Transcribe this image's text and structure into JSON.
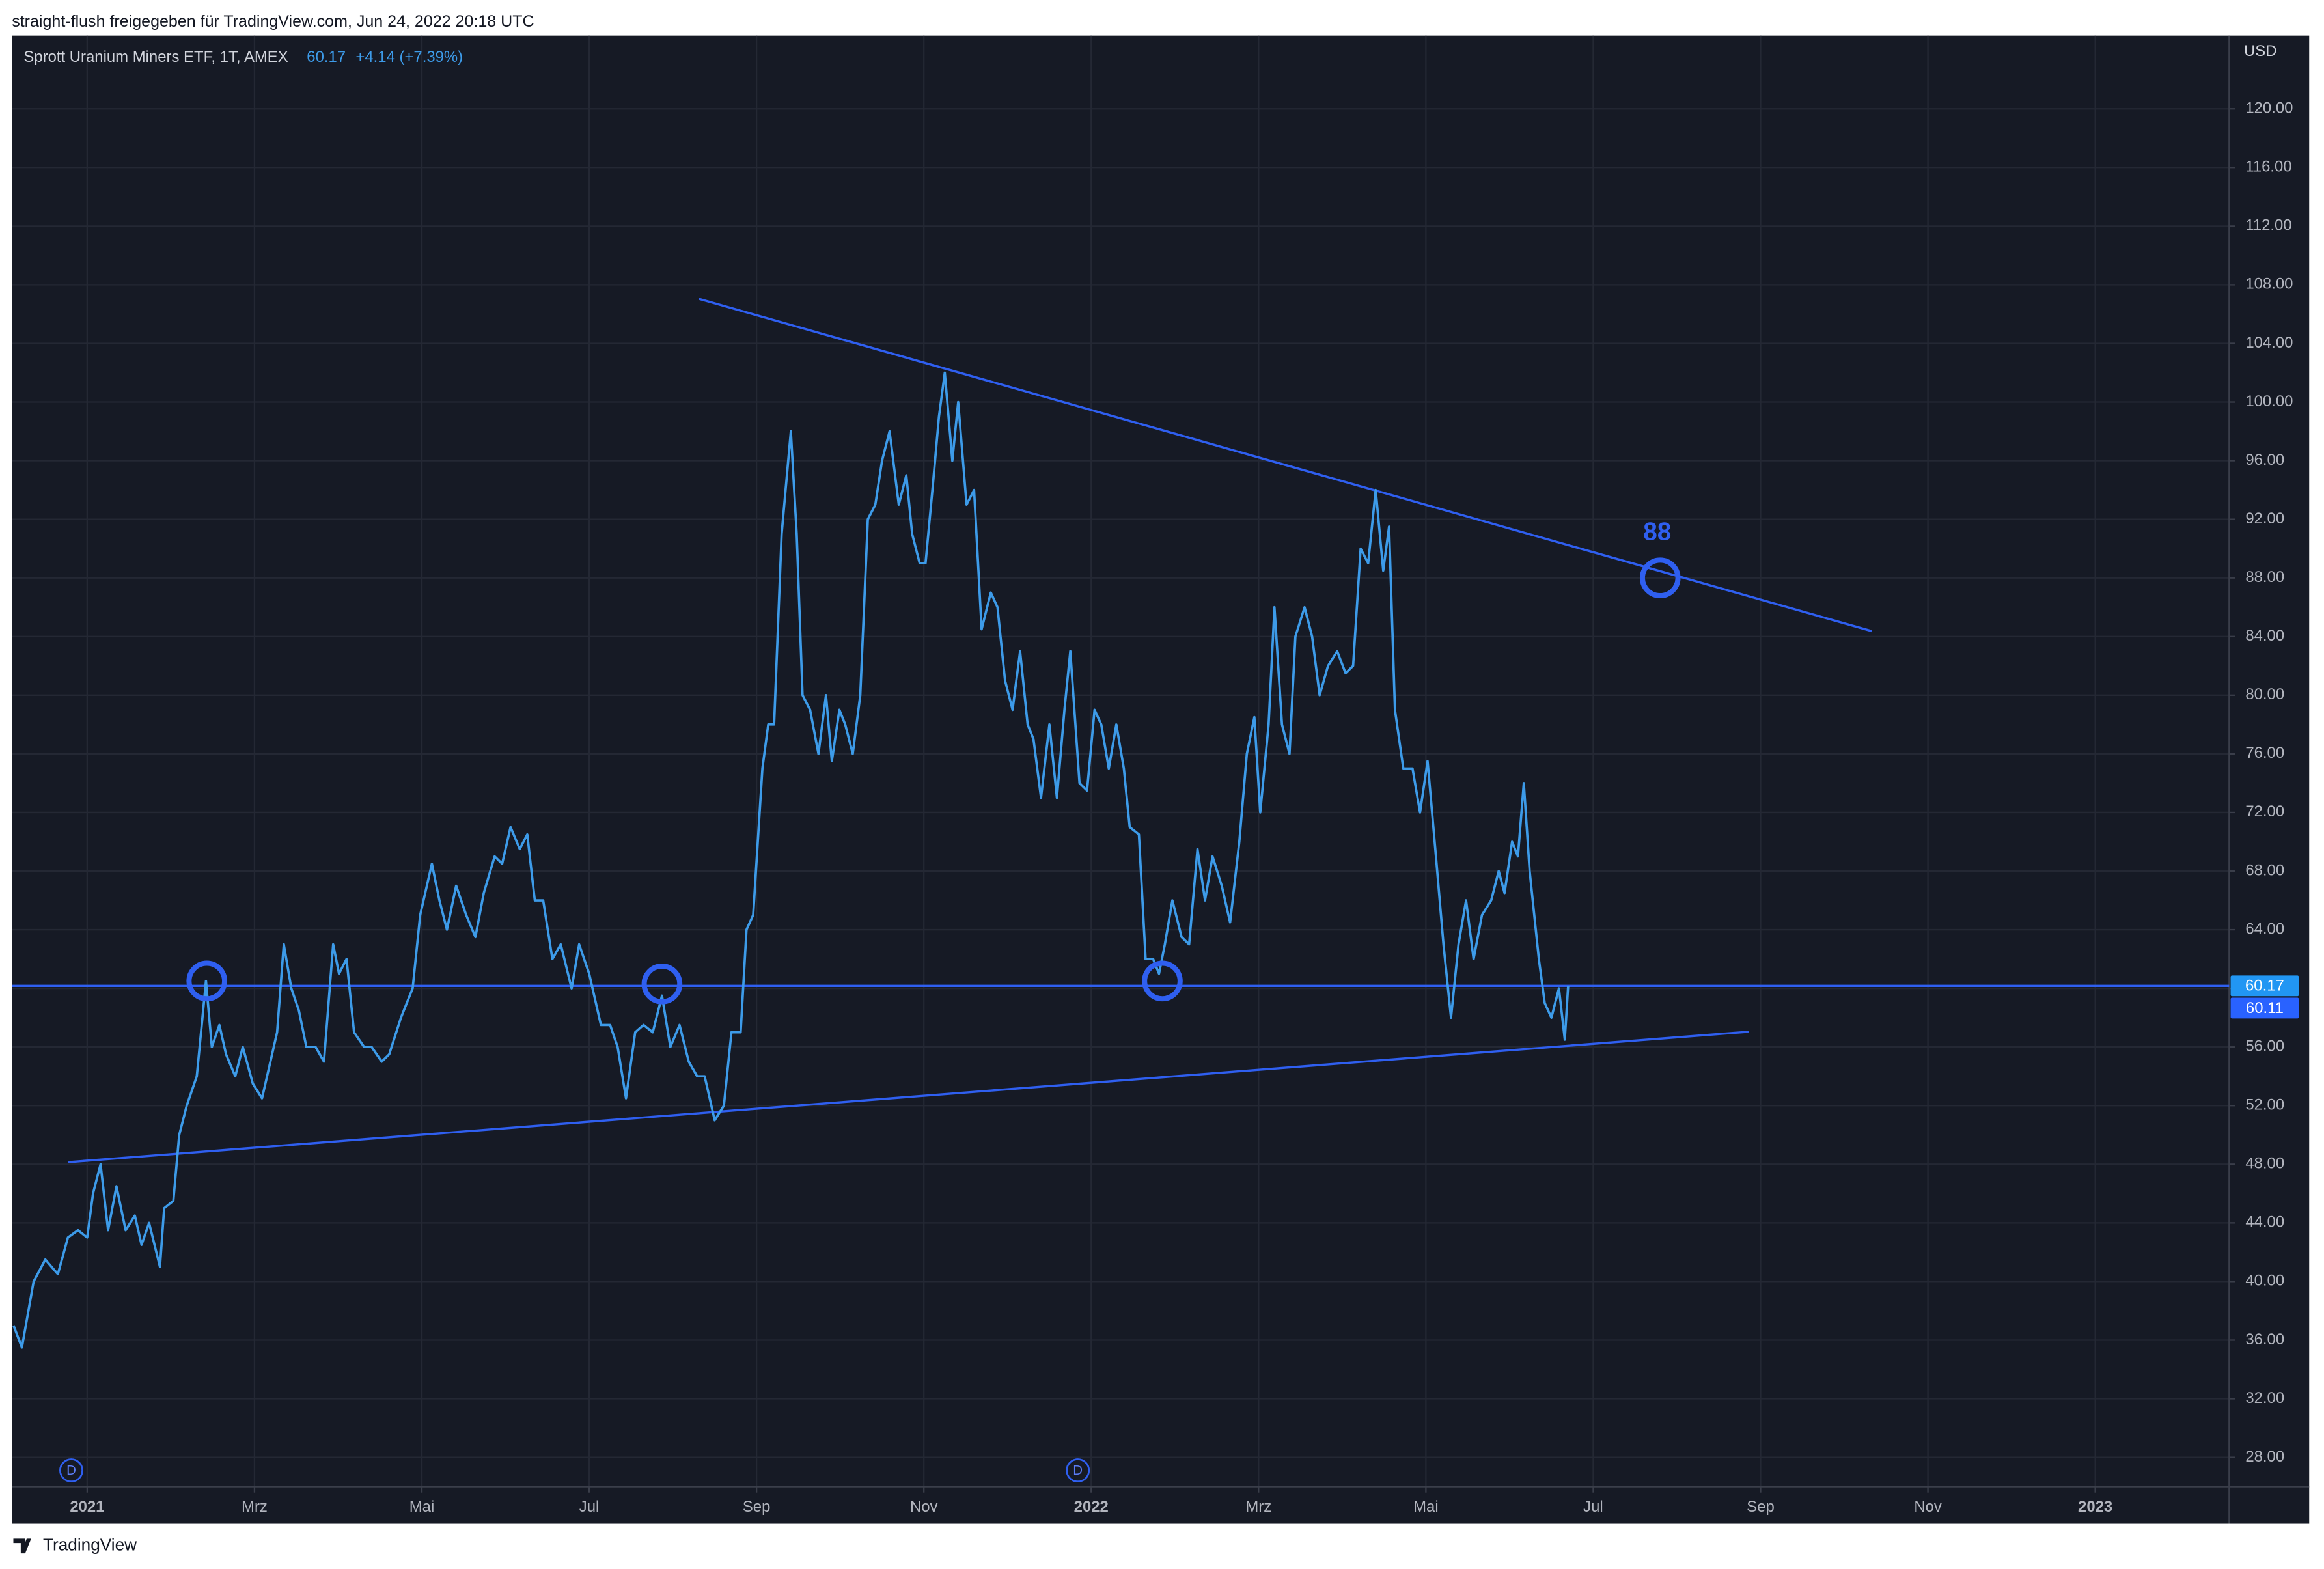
{
  "chart_data": {
    "type": "line",
    "attribution": "straight-flush freigegeben für TradingView.com, Jun 24, 2022 20:18 UTC",
    "brand": "TradingView",
    "currency": "USD",
    "last": 60.17,
    "change": "+4.14 (+7.39%)",
    "x": [
      -0.88,
      -0.78,
      -0.64,
      -0.5,
      -0.35,
      -0.23,
      -0.11,
      0,
      0.07,
      0.16,
      0.25,
      0.35,
      0.46,
      0.57,
      0.65,
      0.74,
      0.87,
      0.92,
      1.03,
      1.1,
      1.19,
      1.31,
      1.42,
      1.49,
      1.58,
      1.66,
      1.77,
      1.86,
      1.98,
      2.09,
      2.19,
      2.27,
      2.35,
      2.44,
      2.53,
      2.62,
      2.73,
      2.83,
      2.94,
      3.01,
      3.1,
      3.19,
      3.31,
      3.4,
      3.52,
      3.61,
      3.75,
      3.89,
      3.98,
      4.12,
      4.21,
      4.3,
      4.41,
      4.53,
      4.64,
      4.74,
      4.87,
      4.96,
      5.06,
      5.17,
      5.26,
      5.35,
      5.45,
      5.56,
      5.66,
      5.79,
      5.88,
      6,
      6.14,
      6.25,
      6.34,
      6.44,
      6.55,
      6.65,
      6.76,
      6.87,
      6.97,
      7.08,
      7.19,
      7.29,
      7.38,
      7.5,
      7.61,
      7.7,
      7.81,
      7.88,
      7.96,
      8.07,
      8.14,
      8.21,
      8.3,
      8.41,
      8.48,
      8.55,
      8.64,
      8.74,
      8.83,
      8.9,
      8.99,
      9.06,
      9.15,
      9.24,
      9.33,
      9.42,
      9.5,
      9.59,
      9.7,
      9.79,
      9.86,
      9.95,
      10.02,
      10.11,
      10.18,
      10.25,
      10.34,
      10.41,
      10.51,
      10.6,
      10.69,
      10.8,
      10.88,
      10.97,
      11.06,
      11.15,
      11.24,
      11.31,
      11.4,
      11.5,
      11.59,
      11.68,
      11.75,
      11.86,
      11.95,
      12.04,
      12.12,
      12.21,
      12.3,
      12.39,
      12.46,
      12.57,
      12.65,
      12.74,
      12.81,
      12.88,
      12.97,
      13.08,
      13.17,
      13.27,
      13.36,
      13.45,
      13.56,
      13.66,
      13.77,
      13.86,
      13.95,
      14.02,
      14.12,
      14.19,
      14.28,
      14.37,
      14.44,
      14.55,
      14.64,
      14.73,
      14.83,
      14.94,
      15.04,
      15.13,
      15.22,
      15.31,
      15.4,
      15.49,
      15.56,
      15.63,
      15.73,
      15.84,
      15.93,
      16.02,
      16.12,
      16.21,
      16.3,
      16.39,
      16.48,
      16.57,
      16.67,
      16.78,
      16.87,
      16.94,
      17.03,
      17.1,
      17.17,
      17.24,
      17.35,
      17.42,
      17.5,
      17.59,
      17.66,
      17.7
    ],
    "series": [
      {
        "name": "Sprott Uranium Miners ETF, 1T, AMEX",
        "color": "#3d9be9",
        "values": [
          37,
          35.5,
          40,
          41.5,
          40.5,
          43,
          43.5,
          43,
          46,
          48,
          43.5,
          46.5,
          43.5,
          44.5,
          42.5,
          44,
          41,
          45,
          45.5,
          50,
          52,
          54,
          60.5,
          56,
          57.5,
          55.5,
          54,
          56,
          53.5,
          52.5,
          55,
          57,
          63,
          60,
          58.5,
          56,
          56,
          55,
          63,
          61,
          62,
          57,
          56,
          56,
          55,
          55.5,
          58,
          60,
          65,
          68.5,
          66,
          64,
          67,
          65,
          63.5,
          66.5,
          69,
          68.5,
          71,
          69.5,
          70.5,
          66,
          66,
          62,
          63,
          60,
          63,
          61,
          57.5,
          57.5,
          56,
          52.5,
          57,
          57.5,
          57,
          59.5,
          56,
          57.5,
          55,
          54,
          54,
          51,
          52,
          57,
          57,
          64,
          65,
          75,
          78,
          78,
          91,
          98,
          91,
          80,
          79,
          76,
          80,
          75.5,
          79,
          78,
          76,
          80,
          92,
          93,
          96,
          98,
          93,
          95,
          91,
          89,
          89,
          94.5,
          99,
          102,
          96,
          100,
          93,
          94,
          84.5,
          87,
          86,
          81,
          79,
          83,
          78,
          77,
          73,
          78,
          73,
          79,
          83,
          74,
          73.5,
          79,
          78,
          75,
          78,
          75,
          71,
          70.5,
          62,
          62,
          61,
          63,
          66,
          63.5,
          63,
          69.5,
          66,
          69,
          67,
          64.5,
          70,
          76,
          78.5,
          72,
          78,
          86,
          78,
          76,
          84,
          86,
          84,
          80,
          82,
          83,
          81.5,
          82,
          90,
          89,
          94,
          88.5,
          91.5,
          79,
          75,
          75,
          72,
          75.5,
          69,
          63,
          58,
          63,
          66,
          62,
          65,
          66,
          68,
          66.5,
          70,
          69,
          74,
          68,
          62,
          59,
          58,
          60,
          56.5,
          60.17
        ]
      }
    ],
    "xlim": [
      -0.9,
      25.6
    ],
    "xticks": [
      {
        "value": 0,
        "label": "2021"
      },
      {
        "value": 2,
        "label": "Mrz"
      },
      {
        "value": 4,
        "label": "Mai"
      },
      {
        "value": 6,
        "label": "Jul"
      },
      {
        "value": 8,
        "label": "Sep"
      },
      {
        "value": 10,
        "label": "Nov"
      },
      {
        "value": 12,
        "label": "2022"
      },
      {
        "value": 14,
        "label": "Mrz"
      },
      {
        "value": 16,
        "label": "Mai"
      },
      {
        "value": 18,
        "label": "Jul"
      },
      {
        "value": 20,
        "label": "Sep"
      },
      {
        "value": 22,
        "label": "Nov"
      },
      {
        "value": 24,
        "label": "2023"
      }
    ],
    "ylim": [
      26,
      125
    ],
    "yticks": [
      {
        "value": 28,
        "label": "28.00"
      },
      {
        "value": 32,
        "label": "32.00"
      },
      {
        "value": 36,
        "label": "36.00"
      },
      {
        "value": 40,
        "label": "40.00"
      },
      {
        "value": 44,
        "label": "44.00"
      },
      {
        "value": 48,
        "label": "48.00"
      },
      {
        "value": 52,
        "label": "52.00"
      },
      {
        "value": 56,
        "label": "56.00"
      },
      {
        "value": 60,
        "label": "60.00"
      },
      {
        "value": 64,
        "label": "64.00"
      },
      {
        "value": 68,
        "label": "68.00"
      },
      {
        "value": 72,
        "label": "72.00"
      },
      {
        "value": 76,
        "label": "76.00"
      },
      {
        "value": 80,
        "label": "80.00"
      },
      {
        "value": 84,
        "label": "84.00"
      },
      {
        "value": 88,
        "label": "88.00"
      },
      {
        "value": 92,
        "label": "92.00"
      },
      {
        "value": 96,
        "label": "96.00"
      },
      {
        "value": 100,
        "label": "100.00"
      },
      {
        "value": 104,
        "label": "104.00"
      },
      {
        "value": 108,
        "label": "108.00"
      },
      {
        "value": 112,
        "label": "112.00"
      },
      {
        "value": 116,
        "label": "116.00"
      },
      {
        "value": 120,
        "label": "120.00"
      }
    ],
    "grid": true,
    "price_labels": [
      60.17,
      60.11
    ],
    "drawings": {
      "color": "#2f5ff0",
      "hlines": [
        60.17
      ],
      "lines": [
        {
          "x": [
            7.31,
            21.33
          ],
          "y": [
            107.04,
            84.37
          ]
        },
        {
          "x": [
            -0.23,
            19.86
          ],
          "y": [
            48.14,
            57.04
          ]
        }
      ],
      "circles": [
        {
          "x": 1.43,
          "y": 60.5
        },
        {
          "x": 6.87,
          "y": 60.3
        },
        {
          "x": 12.85,
          "y": 60.5
        },
        {
          "x": 18.8,
          "y": 88
        }
      ],
      "annotations": [
        {
          "x": 18.8,
          "y": 88,
          "text": "88"
        }
      ]
    },
    "dividend_markers": {
      "x": [
        -0.19,
        11.84
      ],
      "label": "D"
    }
  }
}
